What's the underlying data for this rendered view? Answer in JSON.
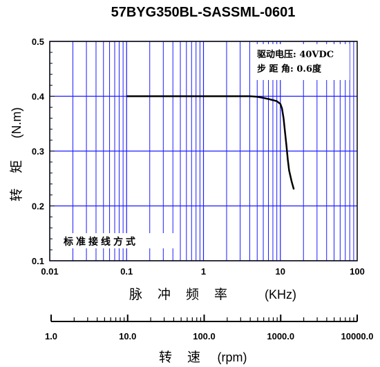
{
  "chart_data": {
    "type": "line",
    "title": "57BYG350BL-SASSML-0601",
    "xlabel_cn": "脉 冲 频 率",
    "xlabel_unit": "(KHz)",
    "ylabel_cn": "转 矩",
    "ylabel_unit": "(N.m)",
    "x_scale": "log",
    "xlim": [
      0.01,
      100
    ],
    "ylim": [
      0.1,
      0.5
    ],
    "x_ticks": [
      "0.01",
      "0.1",
      "1",
      "10",
      "100"
    ],
    "y_ticks": [
      "0.1",
      "0.2",
      "0.3",
      "0.4",
      "0.5"
    ],
    "grid": true,
    "grid_color": "#1a1aff",
    "line_color": "#000000",
    "series": [
      {
        "x": [
          0.1,
          0.5,
          1,
          2,
          3,
          4,
          5,
          6,
          7,
          8,
          9,
          10,
          10.5,
          11,
          11.5,
          12,
          12.5,
          13,
          14,
          15
        ],
        "y": [
          0.4,
          0.4,
          0.4,
          0.4,
          0.4,
          0.4,
          0.399,
          0.397,
          0.395,
          0.393,
          0.391,
          0.386,
          0.378,
          0.36,
          0.335,
          0.31,
          0.285,
          0.265,
          0.245,
          0.23
        ]
      }
    ],
    "annotations": {
      "voltage_label": "驱动电压: 40VDC",
      "step_angle_label": "步 距 角: 0.6度",
      "method_label": "标准接线方式"
    },
    "rpm_axis": {
      "label_cn": "转 速",
      "label_unit": "(rpm)",
      "range": [
        1,
        10000
      ],
      "ticks": [
        "1.0",
        "10.0",
        "100.0",
        "1000.0",
        "10000.0"
      ]
    }
  }
}
